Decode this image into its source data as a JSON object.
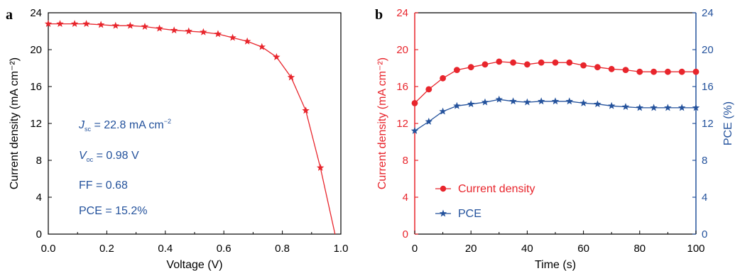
{
  "colors": {
    "red": "#e8252c",
    "blue": "#24529c",
    "black": "#000000"
  },
  "panels": {
    "a": {
      "label": "a"
    },
    "b": {
      "label": "b"
    }
  },
  "annotations": {
    "jsc": {
      "sym": "J",
      "sub": "sc",
      "text": " = 22.8 mA cm",
      "sup": "−2"
    },
    "voc": {
      "sym": "V",
      "sub": "oc",
      "text": " = 0.98 V"
    },
    "ff": "FF = 0.68",
    "pce": "PCE = 15.2%"
  },
  "chart_data": [
    {
      "type": "line",
      "xlabel": "Voltage (V)",
      "ylabel": "Current density (mA cm⁻²)",
      "xlim": [
        0,
        1.0
      ],
      "ylim": [
        0,
        24
      ],
      "xticks": [
        "0.0",
        "0.2",
        "0.4",
        "0.6",
        "0.8",
        "1.0"
      ],
      "yticks": [
        "0",
        "4",
        "8",
        "12",
        "16",
        "20",
        "24"
      ],
      "grid": false,
      "series": [
        {
          "marker": "star",
          "color": "#e8252c",
          "x": [
            0.0,
            0.04,
            0.09,
            0.13,
            0.18,
            0.23,
            0.28,
            0.33,
            0.38,
            0.43,
            0.48,
            0.53,
            0.58,
            0.63,
            0.68,
            0.73,
            0.78,
            0.83,
            0.88,
            0.93,
            0.98
          ],
          "y": [
            22.8,
            22.8,
            22.8,
            22.8,
            22.7,
            22.6,
            22.6,
            22.5,
            22.3,
            22.1,
            22.0,
            21.9,
            21.7,
            21.3,
            20.9,
            20.3,
            19.2,
            17.0,
            13.4,
            7.2,
            0.0
          ]
        }
      ]
    },
    {
      "type": "line",
      "xlabel": "Time (s)",
      "ylabel": "Current density (mA cm⁻²)",
      "y2label": "PCE (%)",
      "xlim": [
        0,
        100
      ],
      "ylim": [
        0,
        24
      ],
      "y2lim": [
        0,
        24
      ],
      "xticks": [
        "0",
        "20",
        "40",
        "60",
        "80",
        "100"
      ],
      "yticks": [
        "0",
        "4",
        "8",
        "12",
        "16",
        "20",
        "24"
      ],
      "y2ticks": [
        "0",
        "4",
        "8",
        "12",
        "16",
        "20",
        "24"
      ],
      "legend": "center-left",
      "grid": false,
      "series": [
        {
          "name": "Current density",
          "marker": "circle",
          "color": "#e8252c",
          "axis": "left",
          "x": [
            0,
            5,
            10,
            15,
            20,
            25,
            30,
            35,
            40,
            45,
            50,
            55,
            60,
            65,
            70,
            75,
            80,
            85,
            90,
            95,
            100
          ],
          "y": [
            14.2,
            15.7,
            16.9,
            17.8,
            18.1,
            18.4,
            18.7,
            18.6,
            18.4,
            18.6,
            18.6,
            18.6,
            18.3,
            18.1,
            17.9,
            17.8,
            17.6,
            17.6,
            17.6,
            17.6,
            17.6
          ]
        },
        {
          "name": "PCE",
          "marker": "star",
          "color": "#24529c",
          "axis": "right",
          "x": [
            0,
            5,
            10,
            15,
            20,
            25,
            30,
            35,
            40,
            45,
            50,
            55,
            60,
            65,
            70,
            75,
            80,
            85,
            90,
            95,
            100
          ],
          "y": [
            11.2,
            12.2,
            13.3,
            13.9,
            14.1,
            14.3,
            14.6,
            14.4,
            14.3,
            14.4,
            14.4,
            14.4,
            14.2,
            14.1,
            13.9,
            13.8,
            13.7,
            13.7,
            13.7,
            13.7,
            13.7
          ]
        }
      ]
    }
  ]
}
